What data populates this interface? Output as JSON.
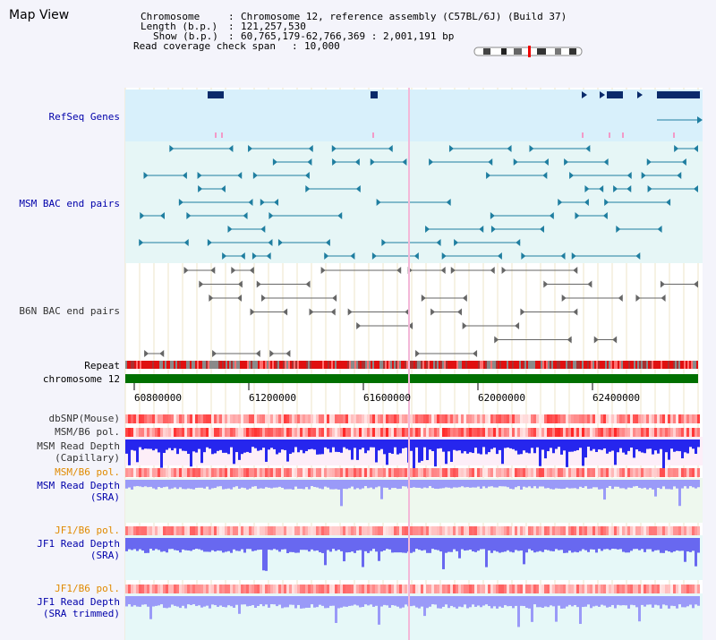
{
  "title": "Map View",
  "header": {
    "chromosome_label": "Chromosome",
    "chromosome_value": "Chromosome 12, reference assembly (C57BL/6J) (Build 37)",
    "length_label": "Length (b.p.)",
    "length_value": "121,257,530",
    "show_label": "Show (b.p.)",
    "show_value": "60,765,179-62,766,369 : 2,001,191 bp",
    "coverage_label": "Read coverage check span",
    "coverage_value": "10,000"
  },
  "tracks": {
    "refseq": "RefSeq Genes",
    "msm_bac": "MSM BAC end pairs",
    "b6n_bac": "B6N BAC end pairs",
    "repeat": "Repeat",
    "chromosome": "chromosome 12",
    "dbsnp": "dbSNP(Mouse)",
    "msm_b6_pol_1": "MSM/B6 pol.",
    "msm_read_depth_cap_1": "MSM Read Depth",
    "msm_read_depth_cap_2": "(Capillary)",
    "msm_b6_pol_2": "MSM/B6 pol.",
    "msm_read_depth_sra_1": "MSM Read Depth",
    "msm_read_depth_sra_2": "(SRA)",
    "jf1_b6_pol_1": "JF1/B6 pol.",
    "jf1_read_depth_sra_1": "JF1 Read Depth",
    "jf1_read_depth_sra_2": "(SRA)",
    "jf1_b6_pol_2": "JF1/B6 pol.",
    "jf1_read_depth_trim_1": "JF1 Read Depth",
    "jf1_read_depth_trim_2": "(SRA trimmed)"
  },
  "axis_ticks": [
    "60800000",
    "61200000",
    "61600000",
    "62000000",
    "62400000"
  ],
  "colors": {
    "refseq_bg": "#d8f0fb",
    "bac_bg": "#e6f6f6",
    "gene": "#0a2a6a",
    "msm_bac": "#1f7ea0",
    "b6n_bac": "#666666",
    "chromosome_bar": "#007000",
    "depth_blue": "#3a3aff",
    "pol_red": "#ff4040"
  }
}
